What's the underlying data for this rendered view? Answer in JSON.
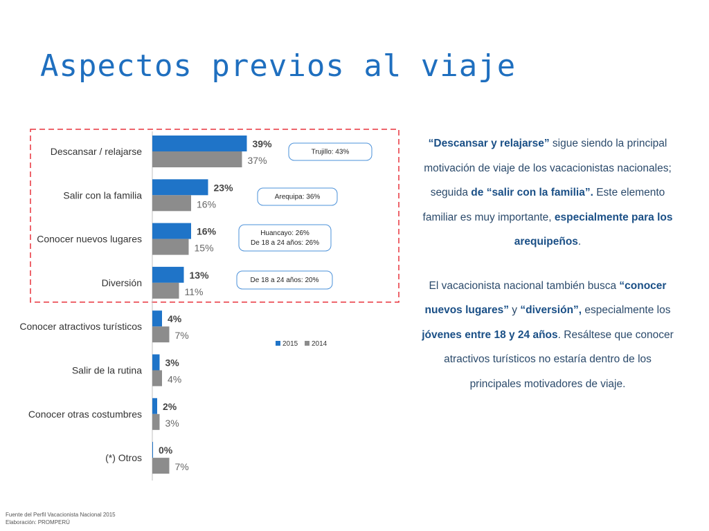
{
  "page": {
    "title": "Aspectos previos al viaje",
    "footer": {
      "line1": "Fuente del Perfil Vacacionista Nacional 2015",
      "line2": "Elaboración: PROMPERÚ"
    }
  },
  "chart_data": {
    "type": "bar",
    "orientation": "horizontal",
    "categories": [
      "Descansar / relajarse",
      "Salir con la familia",
      "Conocer nuevos lugares",
      "Diversión",
      "Conocer atractivos turísticos",
      "Salir de la rutina",
      "Conocer otras costumbres",
      "(*) Otros"
    ],
    "series": [
      {
        "name": "2015",
        "values": [
          39,
          23,
          16,
          13,
          4,
          3,
          2,
          0
        ],
        "color": "#1f74c8"
      },
      {
        "name": "2014",
        "values": [
          37,
          16,
          15,
          11,
          7,
          4,
          3,
          7
        ],
        "color": "#8c8c8c"
      }
    ],
    "value_suffix": "%",
    "legend_position": "center-right",
    "grid": false,
    "callouts": [
      {
        "category_index": 0,
        "lines": [
          "Trujillo: 43%"
        ]
      },
      {
        "category_index": 1,
        "lines": [
          "Arequipa: 36%"
        ]
      },
      {
        "category_index": 2,
        "lines": [
          "Huancayo: 26%",
          "De 18 a 24 años: 26%"
        ]
      },
      {
        "category_index": 3,
        "lines": [
          "De 18 a 24 años: 20%"
        ]
      }
    ],
    "highlight_color": "#e8323c"
  },
  "text_panel": {
    "p1": [
      {
        "t": "“Descansar y relajarse”",
        "b": true
      },
      {
        "t": " sigue siendo la principal motivación de viaje de los vacacionistas nacionales; seguida ",
        "b": false
      },
      {
        "t": "de “salir con la familia”.",
        "b": true
      },
      {
        "t": " Este elemento familiar es muy importante, ",
        "b": false
      },
      {
        "t": "especialmente para los arequipeños",
        "b": true
      },
      {
        "t": ".",
        "b": false
      }
    ],
    "p2": [
      {
        "t": "El vacacionista nacional también busca ",
        "b": false
      },
      {
        "t": "“conocer nuevos lugares”",
        "b": true
      },
      {
        "t": " y ",
        "b": false
      },
      {
        "t": "“diversión”,",
        "b": true
      },
      {
        "t": " especialmente los ",
        "b": false
      },
      {
        "t": "jóvenes entre 18 y 24 años",
        "b": true
      },
      {
        "t": ". Resáltese que conocer atractivos turísticos no estaría dentro de los principales motivadores de viaje.",
        "b": false
      }
    ]
  }
}
